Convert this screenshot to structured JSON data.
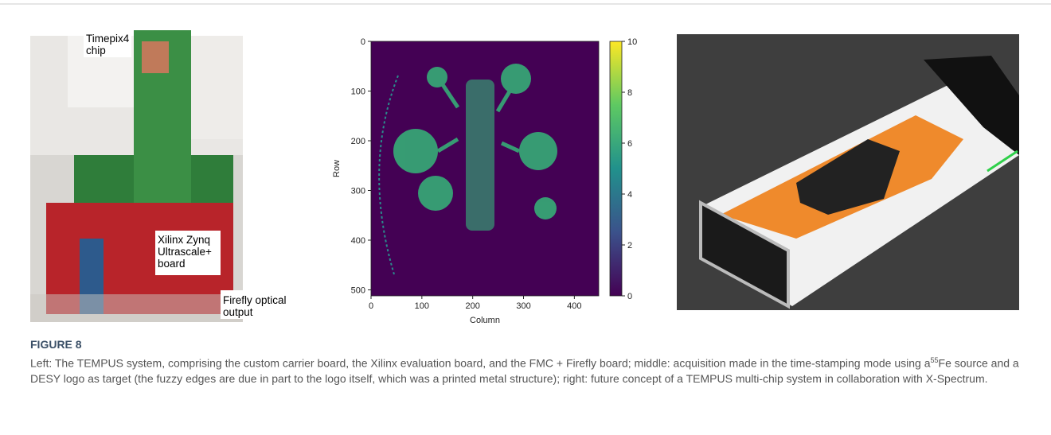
{
  "figure": {
    "left_panel": {
      "labels": [
        [
          "Timepix4",
          "chip"
        ],
        [
          "Xilinx Zynq",
          "Ultrascale+",
          "board"
        ],
        [
          "Firefly optical",
          "output"
        ]
      ]
    },
    "middle_panel": {
      "x_label": "Column",
      "y_label": "Row",
      "xlim": [
        0,
        448
      ],
      "xticks": [
        0,
        100,
        200,
        300,
        400
      ],
      "ylim": [
        0,
        512
      ],
      "yticks": [
        0,
        100,
        200,
        300,
        400,
        500
      ],
      "clim": [
        0,
        10
      ],
      "colorbar_ticks": [
        0,
        2,
        4,
        6,
        8,
        10
      ]
    },
    "label": "FIGURE 8",
    "caption_before": "Left: The TEMPUS system, comprising the custom carrier board, the Xilinx evaluation board, and the FMC + Firefly board; middle: acquisition made in the time-stamping mode using a",
    "caption_superscript": "55",
    "caption_after": "Fe source and a DESY logo as target (the fuzzy edges are due in part to the logo itself, which was a printed metal structure); right: future concept of a TEMPUS multi-chip system in collaboration with X-Spectrum."
  }
}
